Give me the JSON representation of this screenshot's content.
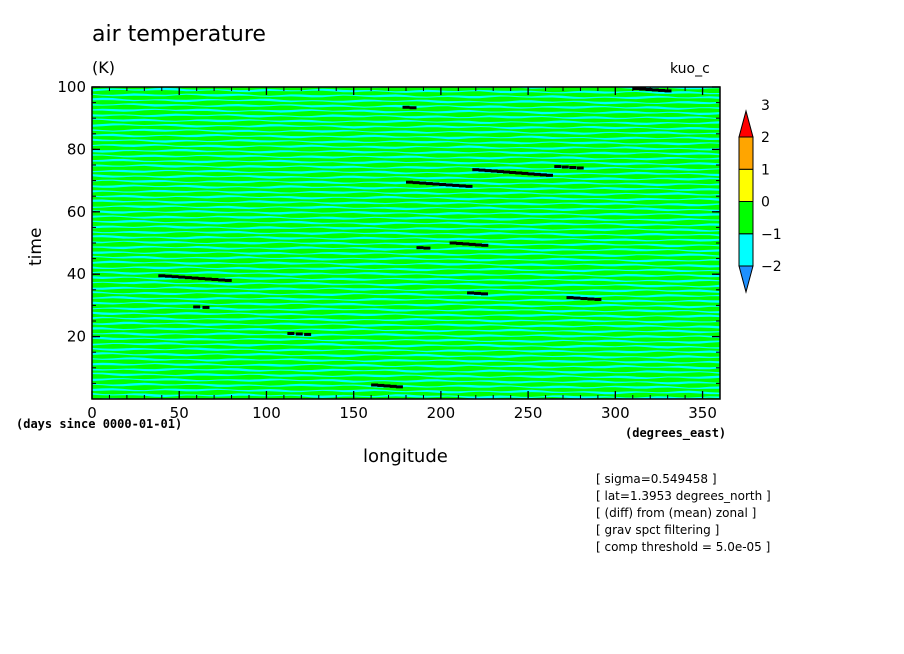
{
  "header": {
    "title": "air temperature",
    "units": "(K)",
    "run_name": "kuo_c"
  },
  "axes": {
    "xlabel": "longitude",
    "ylabel": "time",
    "x_origin_note": "(days since 0000-01-01)",
    "x_units": "(degrees_east)"
  },
  "notes": [
    "[ sigma=0.549458 ]",
    "[ lat=1.3953 degrees_north ]",
    "[ (diff) from (mean) zonal ]",
    "[ grav spct filtering ]",
    "[ comp threshold = 5.0e-05 ]"
  ],
  "colors": {
    "background": "#00ff00",
    "band_minus1": "#00ffff",
    "marks": "#000000",
    "colorbar": [
      "#1e90ff",
      "#00ffff",
      "#00ff00",
      "#ffff00",
      "#ffa500",
      "#ff0000"
    ]
  },
  "chart_data": {
    "type": "heatmap",
    "title": "air temperature",
    "xlabel": "longitude",
    "ylabel": "time",
    "xlim": [
      0,
      360
    ],
    "ylim": [
      0,
      100
    ],
    "x_ticks": [
      0,
      50,
      100,
      150,
      200,
      250,
      300,
      350
    ],
    "y_ticks": [
      20,
      40,
      60,
      80,
      100
    ],
    "grid": false,
    "colorbar": {
      "levels": [
        -2,
        -1,
        0,
        1,
        2,
        3
      ],
      "colors": [
        "#1e90ff",
        "#00ffff",
        "#00ff00",
        "#ffff00",
        "#ffa500",
        "#ff0000"
      ],
      "extend": "both"
    },
    "dominant_levels": [
      -1,
      0
    ],
    "band_slope_deg_per_day": -0.09,
    "band_spacing_time": 1.63,
    "low_value_patches": [
      {
        "lon": [
          178,
          184
        ],
        "t": 93.5
      },
      {
        "lon": [
          310,
          330
        ],
        "t": 99.5
      },
      {
        "lon": [
          218,
          262
        ],
        "t": 73.5
      },
      {
        "lon": [
          265,
          280
        ],
        "t": 74.5
      },
      {
        "lon": [
          180,
          216
        ],
        "t": 69.5
      },
      {
        "lon": [
          186,
          192
        ],
        "t": 48.5
      },
      {
        "lon": [
          205,
          225
        ],
        "t": 50.0
      },
      {
        "lon": [
          38,
          78
        ],
        "t": 39.5
      },
      {
        "lon": [
          215,
          225
        ],
        "t": 34.0
      },
      {
        "lon": [
          272,
          290
        ],
        "t": 32.5
      },
      {
        "lon": [
          58,
          66
        ],
        "t": 29.5
      },
      {
        "lon": [
          112,
          124
        ],
        "t": 21.0
      },
      {
        "lon": [
          160,
          176
        ],
        "t": 4.5
      }
    ]
  }
}
